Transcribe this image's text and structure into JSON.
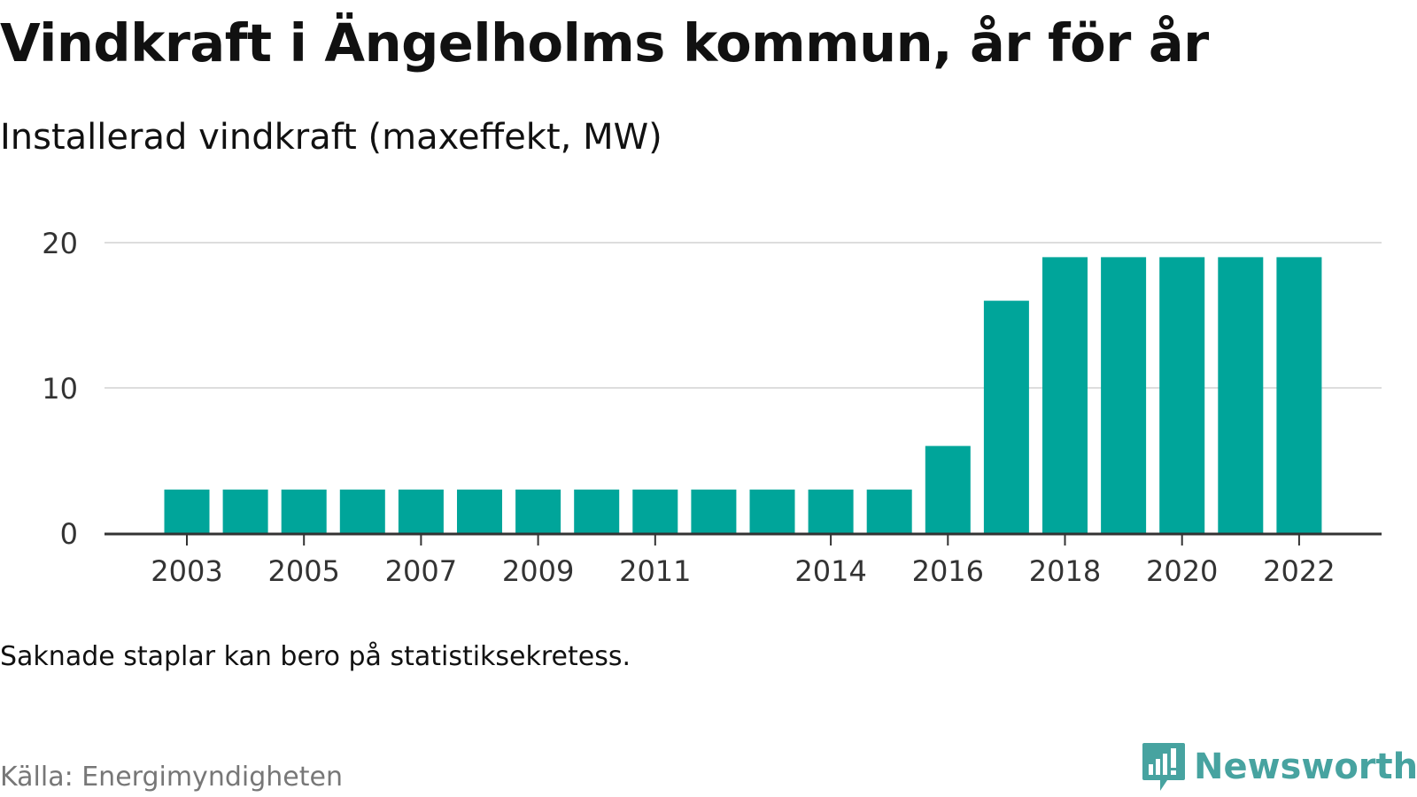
{
  "header": {
    "title": "Vindkraft i Ängelholms kommun, år för år",
    "subtitle": "Installerad vindkraft (maxeffekt, MW)"
  },
  "chart_data": {
    "type": "bar",
    "title": "Vindkraft i Ängelholms kommun, år för år",
    "subtitle": "Installerad vindkraft (maxeffekt, MW)",
    "xlabel": "",
    "ylabel": "",
    "categories": [
      "2003",
      "2004",
      "2005",
      "2006",
      "2007",
      "2008",
      "2009",
      "2010",
      "2011",
      "2012",
      "2013",
      "2014",
      "2015",
      "2016",
      "2017",
      "2018",
      "2019",
      "2020",
      "2021",
      "2022"
    ],
    "values": [
      3,
      3,
      3,
      3,
      3,
      3,
      3,
      3,
      3,
      3,
      3,
      3,
      3,
      6,
      16,
      19,
      19,
      19,
      19,
      19
    ],
    "ylim": [
      0,
      20
    ],
    "yticks": [
      0,
      10,
      20
    ],
    "xtick_labels": [
      "2003",
      "2005",
      "2007",
      "2009",
      "2011",
      "2014",
      "2016",
      "2018",
      "2020",
      "2022"
    ],
    "grid": true,
    "bar_color": "#00a59a"
  },
  "footer": {
    "note": "Saknade staplar kan bero på statistiksekretess.",
    "source": "Källa: Energimyndigheten",
    "brand": "Newsworthy",
    "brand_icon": "bar-chart-speech-bubble-icon",
    "brand_color": "#47a3a0"
  }
}
